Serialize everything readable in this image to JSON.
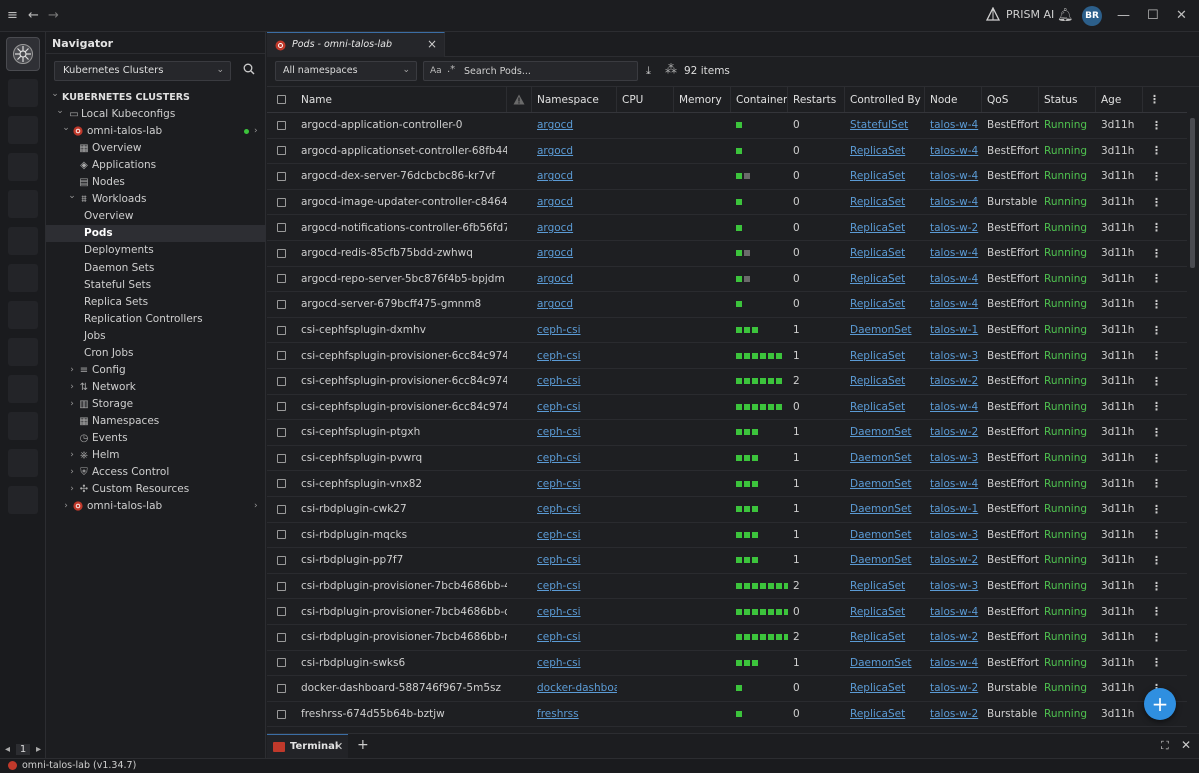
{
  "titlebar": {
    "brand": "PRISM AI",
    "avatar": "BR"
  },
  "rail": {
    "page": "1"
  },
  "navigator": {
    "title": "Navigator",
    "source_select": "Kubernetes Clusters",
    "section": "KUBERNETES CLUSTERS",
    "local_kubeconfigs": "Local Kubeconfigs",
    "cluster": "omni-talos-lab",
    "items": [
      {
        "label": "Overview",
        "icon": "grid-icon"
      },
      {
        "label": "Applications",
        "icon": "apps-icon"
      },
      {
        "label": "Nodes",
        "icon": "nodes-icon"
      }
    ],
    "workloads": "Workloads",
    "workload_items": [
      "Overview",
      "Pods",
      "Deployments",
      "Daemon Sets",
      "Stateful Sets",
      "Replica Sets",
      "Replication Controllers",
      "Jobs",
      "Cron Jobs"
    ],
    "groups": [
      {
        "label": "Config",
        "icon": "config-icon",
        "expandable": true
      },
      {
        "label": "Network",
        "icon": "network-icon",
        "expandable": true
      },
      {
        "label": "Storage",
        "icon": "storage-icon",
        "expandable": true
      },
      {
        "label": "Namespaces",
        "icon": "namespaces-icon",
        "expandable": false
      },
      {
        "label": "Events",
        "icon": "events-icon",
        "expandable": false
      },
      {
        "label": "Helm",
        "icon": "helm-icon",
        "expandable": true
      },
      {
        "label": "Access Control",
        "icon": "shield-icon",
        "expandable": true
      },
      {
        "label": "Custom Resources",
        "icon": "puzzle-icon",
        "expandable": true
      }
    ],
    "second_cluster": "omni-talos-lab"
  },
  "tab": {
    "label": "Pods - omni-talos-lab"
  },
  "toolbar": {
    "namespace_select": "All namespaces",
    "case_toggle": "Aa",
    "regex_toggle": ".*",
    "search_placeholder": "Search Pods...",
    "item_count": "92 items"
  },
  "table": {
    "columns": [
      "Name",
      "Namespace",
      "CPU",
      "Memory",
      "Container",
      "Restarts",
      "Controlled By",
      "Node",
      "QoS",
      "Status",
      "Age"
    ],
    "rows": [
      {
        "name": "argocd-application-controller-0",
        "namespace": "argocd",
        "containers": 1,
        "gray": 0,
        "restarts": "0",
        "controlled_by": "StatefulSet",
        "node": "talos-w-4",
        "qos": "BestEffort",
        "status": "Running",
        "age": "3d11h"
      },
      {
        "name": "argocd-applicationset-controller-68fb4455b",
        "namespace": "argocd",
        "containers": 1,
        "gray": 0,
        "restarts": "0",
        "controlled_by": "ReplicaSet",
        "node": "talos-w-4",
        "qos": "BestEffort",
        "status": "Running",
        "age": "3d11h"
      },
      {
        "name": "argocd-dex-server-76dcbcbc86-kr7vf",
        "namespace": "argocd",
        "containers": 1,
        "gray": 1,
        "restarts": "0",
        "controlled_by": "ReplicaSet",
        "node": "talos-w-4",
        "qos": "BestEffort",
        "status": "Running",
        "age": "3d11h"
      },
      {
        "name": "argocd-image-updater-controller-c8464449f",
        "namespace": "argocd",
        "containers": 1,
        "gray": 0,
        "restarts": "0",
        "controlled_by": "ReplicaSet",
        "node": "talos-w-4",
        "qos": "Burstable",
        "status": "Running",
        "age": "3d11h"
      },
      {
        "name": "argocd-notifications-controller-6fb56fd7c8-",
        "namespace": "argocd",
        "containers": 1,
        "gray": 0,
        "restarts": "0",
        "controlled_by": "ReplicaSet",
        "node": "talos-w-2",
        "qos": "BestEffort",
        "status": "Running",
        "age": "3d11h"
      },
      {
        "name": "argocd-redis-85cfb75bdd-zwhwq",
        "namespace": "argocd",
        "containers": 1,
        "gray": 1,
        "restarts": "0",
        "controlled_by": "ReplicaSet",
        "node": "talos-w-4",
        "qos": "BestEffort",
        "status": "Running",
        "age": "3d11h"
      },
      {
        "name": "argocd-repo-server-5bc876f4b5-bpjdm",
        "namespace": "argocd",
        "containers": 1,
        "gray": 1,
        "restarts": "0",
        "controlled_by": "ReplicaSet",
        "node": "talos-w-4",
        "qos": "BestEffort",
        "status": "Running",
        "age": "3d11h"
      },
      {
        "name": "argocd-server-679bcff475-gmnm8",
        "namespace": "argocd",
        "containers": 1,
        "gray": 0,
        "restarts": "0",
        "controlled_by": "ReplicaSet",
        "node": "talos-w-4",
        "qos": "BestEffort",
        "status": "Running",
        "age": "3d11h"
      },
      {
        "name": "csi-cephfsplugin-dxmhv",
        "namespace": "ceph-csi",
        "containers": 3,
        "gray": 0,
        "restarts": "1",
        "controlled_by": "DaemonSet",
        "node": "talos-w-1",
        "qos": "BestEffort",
        "status": "Running",
        "age": "3d11h"
      },
      {
        "name": "csi-cephfsplugin-provisioner-6cc84c9744-6p",
        "namespace": "ceph-csi",
        "containers": 6,
        "gray": 0,
        "restarts": "1",
        "controlled_by": "ReplicaSet",
        "node": "talos-w-3",
        "qos": "BestEffort",
        "status": "Running",
        "age": "3d11h"
      },
      {
        "name": "csi-cephfsplugin-provisioner-6cc84c9744-7k",
        "namespace": "ceph-csi",
        "containers": 6,
        "gray": 0,
        "restarts": "2",
        "controlled_by": "ReplicaSet",
        "node": "talos-w-2",
        "qos": "BestEffort",
        "status": "Running",
        "age": "3d11h"
      },
      {
        "name": "csi-cephfsplugin-provisioner-6cc84c9744-h4",
        "namespace": "ceph-csi",
        "containers": 6,
        "gray": 0,
        "restarts": "0",
        "controlled_by": "ReplicaSet",
        "node": "talos-w-4",
        "qos": "BestEffort",
        "status": "Running",
        "age": "3d11h"
      },
      {
        "name": "csi-cephfsplugin-ptgxh",
        "namespace": "ceph-csi",
        "containers": 3,
        "gray": 0,
        "restarts": "1",
        "controlled_by": "DaemonSet",
        "node": "talos-w-2",
        "qos": "BestEffort",
        "status": "Running",
        "age": "3d11h"
      },
      {
        "name": "csi-cephfsplugin-pvwrq",
        "namespace": "ceph-csi",
        "containers": 3,
        "gray": 0,
        "restarts": "1",
        "controlled_by": "DaemonSet",
        "node": "talos-w-3",
        "qos": "BestEffort",
        "status": "Running",
        "age": "3d11h"
      },
      {
        "name": "csi-cephfsplugin-vnx82",
        "namespace": "ceph-csi",
        "containers": 3,
        "gray": 0,
        "restarts": "1",
        "controlled_by": "DaemonSet",
        "node": "talos-w-4",
        "qos": "BestEffort",
        "status": "Running",
        "age": "3d11h"
      },
      {
        "name": "csi-rbdplugin-cwk27",
        "namespace": "ceph-csi",
        "containers": 3,
        "gray": 0,
        "restarts": "1",
        "controlled_by": "DaemonSet",
        "node": "talos-w-1",
        "qos": "BestEffort",
        "status": "Running",
        "age": "3d11h"
      },
      {
        "name": "csi-rbdplugin-mqcks",
        "namespace": "ceph-csi",
        "containers": 3,
        "gray": 0,
        "restarts": "1",
        "controlled_by": "DaemonSet",
        "node": "talos-w-3",
        "qos": "BestEffort",
        "status": "Running",
        "age": "3d11h"
      },
      {
        "name": "csi-rbdplugin-pp7f7",
        "namespace": "ceph-csi",
        "containers": 3,
        "gray": 0,
        "restarts": "1",
        "controlled_by": "DaemonSet",
        "node": "talos-w-2",
        "qos": "BestEffort",
        "status": "Running",
        "age": "3d11h"
      },
      {
        "name": "csi-rbdplugin-provisioner-7bcb4686bb-429x",
        "namespace": "ceph-csi",
        "containers": 7,
        "gray": 0,
        "restarts": "2",
        "controlled_by": "ReplicaSet",
        "node": "talos-w-3",
        "qos": "BestEffort",
        "status": "Running",
        "age": "3d11h"
      },
      {
        "name": "csi-rbdplugin-provisioner-7bcb4686bb-dgjql",
        "namespace": "ceph-csi",
        "containers": 7,
        "gray": 0,
        "restarts": "0",
        "controlled_by": "ReplicaSet",
        "node": "talos-w-4",
        "qos": "BestEffort",
        "status": "Running",
        "age": "3d11h"
      },
      {
        "name": "csi-rbdplugin-provisioner-7bcb4686bb-nzpk",
        "namespace": "ceph-csi",
        "containers": 7,
        "gray": 0,
        "restarts": "2",
        "controlled_by": "ReplicaSet",
        "node": "talos-w-2",
        "qos": "BestEffort",
        "status": "Running",
        "age": "3d11h"
      },
      {
        "name": "csi-rbdplugin-swks6",
        "namespace": "ceph-csi",
        "containers": 3,
        "gray": 0,
        "restarts": "1",
        "controlled_by": "DaemonSet",
        "node": "talos-w-4",
        "qos": "BestEffort",
        "status": "Running",
        "age": "3d11h"
      },
      {
        "name": "docker-dashboard-588746f967-5m5sz",
        "namespace": "docker-dashboar",
        "containers": 1,
        "gray": 0,
        "restarts": "0",
        "controlled_by": "ReplicaSet",
        "node": "talos-w-2",
        "qos": "Burstable",
        "status": "Running",
        "age": "3d11h"
      },
      {
        "name": "freshrss-674d55b64b-bztjw",
        "namespace": "freshrss",
        "containers": 1,
        "gray": 0,
        "restarts": "0",
        "controlled_by": "ReplicaSet",
        "node": "talos-w-2",
        "qos": "Burstable",
        "status": "Running",
        "age": "3d11h"
      }
    ]
  },
  "terminal": {
    "label": "Terminal"
  },
  "statusbar": {
    "context": "omni-talos-lab (v1.34.7)"
  },
  "colors": {
    "running": "#4fc14f",
    "link": "#5b9bd5",
    "accent": "#2f8fe0",
    "cluster_dot": "#c0392b"
  }
}
